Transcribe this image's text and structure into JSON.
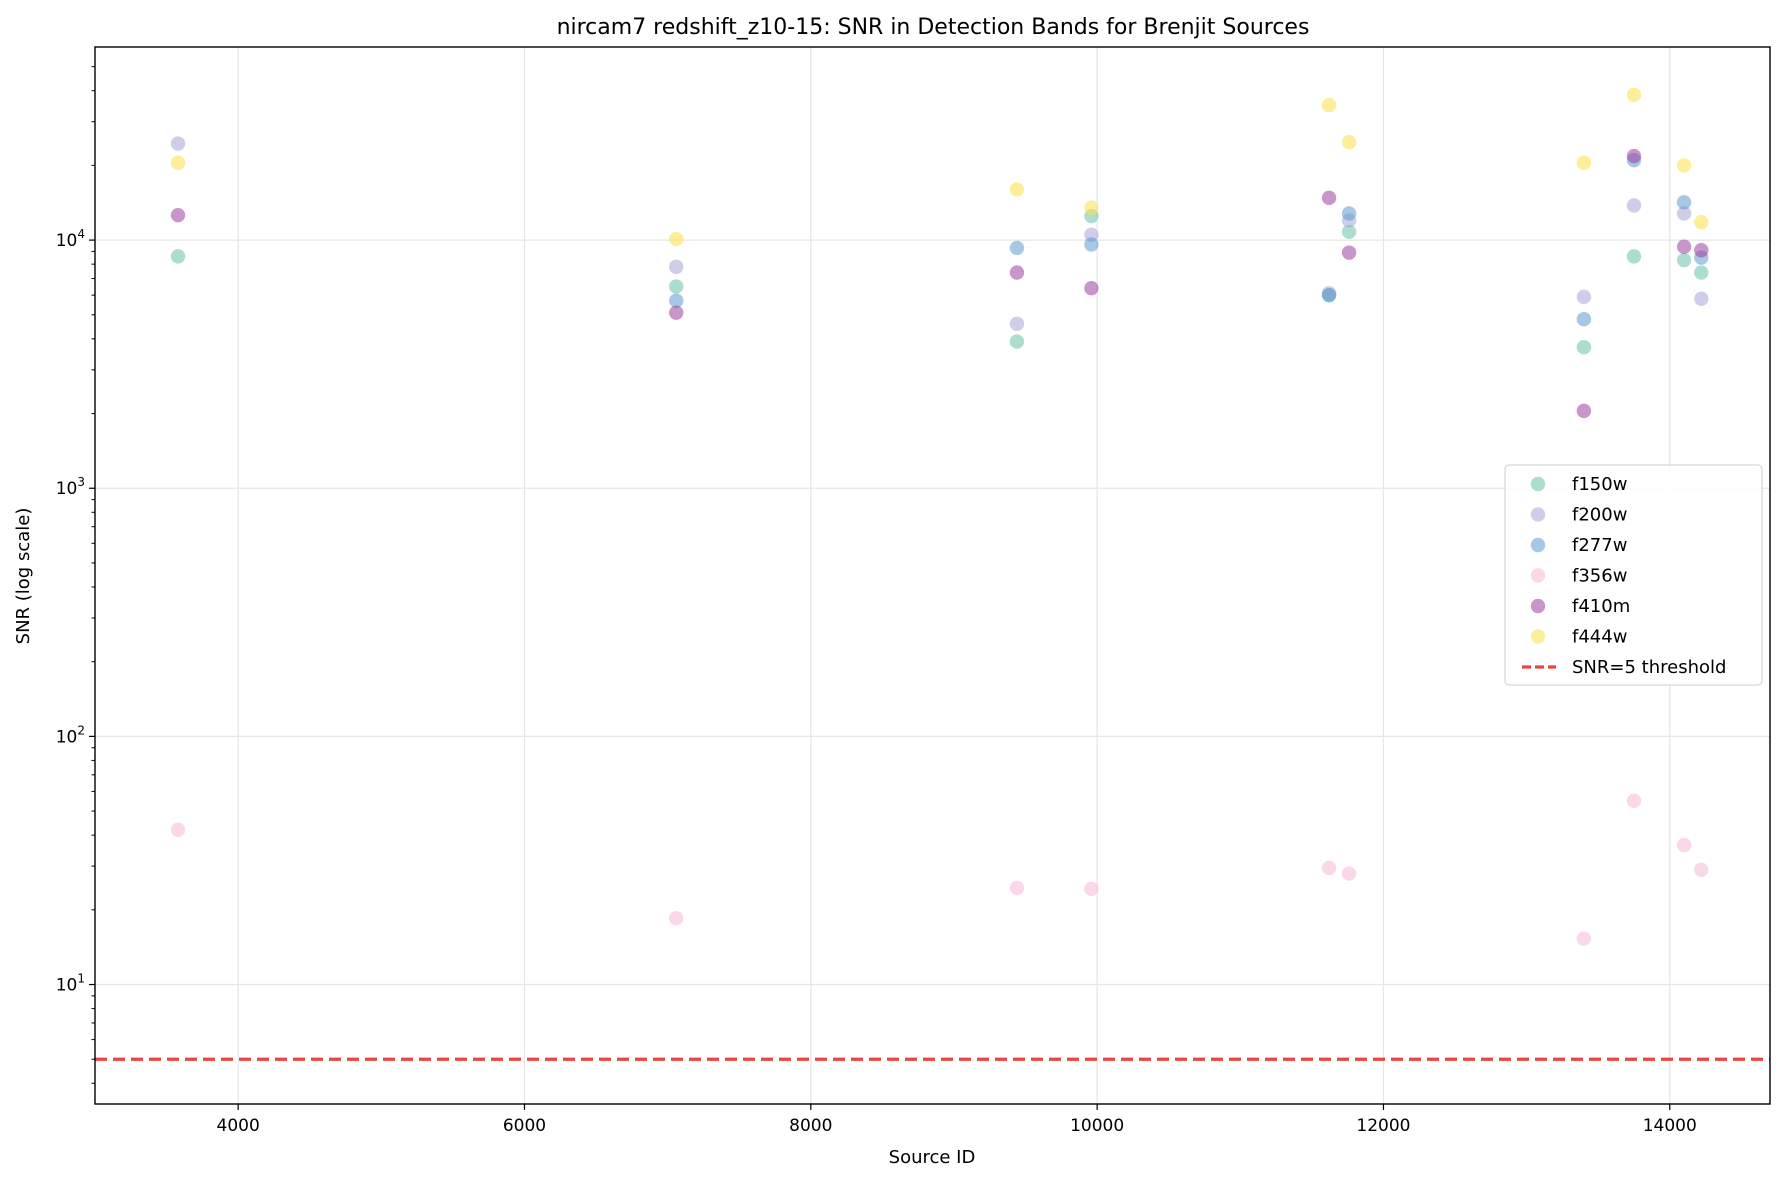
{
  "chart_data": {
    "type": "scatter",
    "title": "nircam7 redshift_z10-15: SNR in Detection Bands for Brenjit Sources",
    "xlabel": "Source ID",
    "ylabel": "SNR (log scale)",
    "xlim": [
      3000,
      14700
    ],
    "ylim": [
      3.3,
      60000
    ],
    "yscale": "log",
    "grid": true,
    "legend_position": "center-right",
    "x_ticks": [
      {
        "value": 4000,
        "label": "4000"
      },
      {
        "value": 6000,
        "label": "6000"
      },
      {
        "value": 8000,
        "label": "8000"
      },
      {
        "value": 10000,
        "label": "10000"
      },
      {
        "value": 12000,
        "label": "12000"
      },
      {
        "value": 14000,
        "label": "14000"
      }
    ],
    "y_ticks": [
      {
        "value": 10,
        "base": "10",
        "exp": "1"
      },
      {
        "value": 100,
        "base": "10",
        "exp": "2"
      },
      {
        "value": 1000,
        "base": "10",
        "exp": "3"
      },
      {
        "value": 10000,
        "base": "10",
        "exp": "4"
      }
    ],
    "series": [
      {
        "name": "f150w",
        "color": "#66c2a5",
        "points": [
          [
            3580,
            8600
          ],
          [
            7060,
            6500
          ],
          [
            9440,
            3900
          ],
          [
            9960,
            12500
          ],
          [
            11620,
            6000
          ],
          [
            11760,
            10800
          ],
          [
            13400,
            3700
          ],
          [
            13750,
            8600
          ],
          [
            14100,
            8300
          ],
          [
            14220,
            7400
          ]
        ]
      },
      {
        "name": "f200w",
        "color": "#a6a6d6",
        "points": [
          [
            3580,
            24500
          ],
          [
            7060,
            7800
          ],
          [
            9440,
            4600
          ],
          [
            9960,
            10500
          ],
          [
            11620,
            6100
          ],
          [
            11760,
            12000
          ],
          [
            13400,
            5900
          ],
          [
            13750,
            13800
          ],
          [
            14100,
            12800
          ],
          [
            14220,
            5800
          ]
        ]
      },
      {
        "name": "f277w",
        "color": "#5f9bd0",
        "points": [
          [
            7060,
            5700
          ],
          [
            9440,
            9300
          ],
          [
            9960,
            9600
          ],
          [
            11620,
            6000
          ],
          [
            11760,
            12800
          ],
          [
            13400,
            4800
          ],
          [
            13750,
            21000
          ],
          [
            14100,
            14200
          ],
          [
            14220,
            8500
          ]
        ]
      },
      {
        "name": "f356w",
        "color": "#f7b6d8",
        "points": [
          [
            3580,
            42
          ],
          [
            7060,
            18.5
          ],
          [
            9440,
            24.5
          ],
          [
            9960,
            24.3
          ],
          [
            11620,
            29.5
          ],
          [
            11760,
            28
          ],
          [
            13400,
            15.3
          ],
          [
            13750,
            55
          ],
          [
            14100,
            36.5
          ],
          [
            14220,
            29
          ]
        ]
      },
      {
        "name": "f410m",
        "color": "#9b3f9f",
        "points": [
          [
            3580,
            12600
          ],
          [
            7060,
            5100
          ],
          [
            9440,
            7400
          ],
          [
            9960,
            6400
          ],
          [
            11620,
            14800
          ],
          [
            11760,
            8900
          ],
          [
            13400,
            2050
          ],
          [
            13750,
            21800
          ],
          [
            14100,
            9400
          ],
          [
            14220,
            9100
          ]
        ]
      },
      {
        "name": "f444w",
        "color": "#fde047",
        "points": [
          [
            3580,
            20500
          ],
          [
            7060,
            10100
          ],
          [
            9440,
            16000
          ],
          [
            9960,
            13500
          ],
          [
            11620,
            35000
          ],
          [
            11760,
            24800
          ],
          [
            13400,
            20500
          ],
          [
            13750,
            38500
          ],
          [
            14100,
            20000
          ],
          [
            14220,
            11800
          ]
        ]
      }
    ],
    "threshold": {
      "name": "SNR=5 threshold",
      "value": 5,
      "color": "#ef4444"
    }
  }
}
